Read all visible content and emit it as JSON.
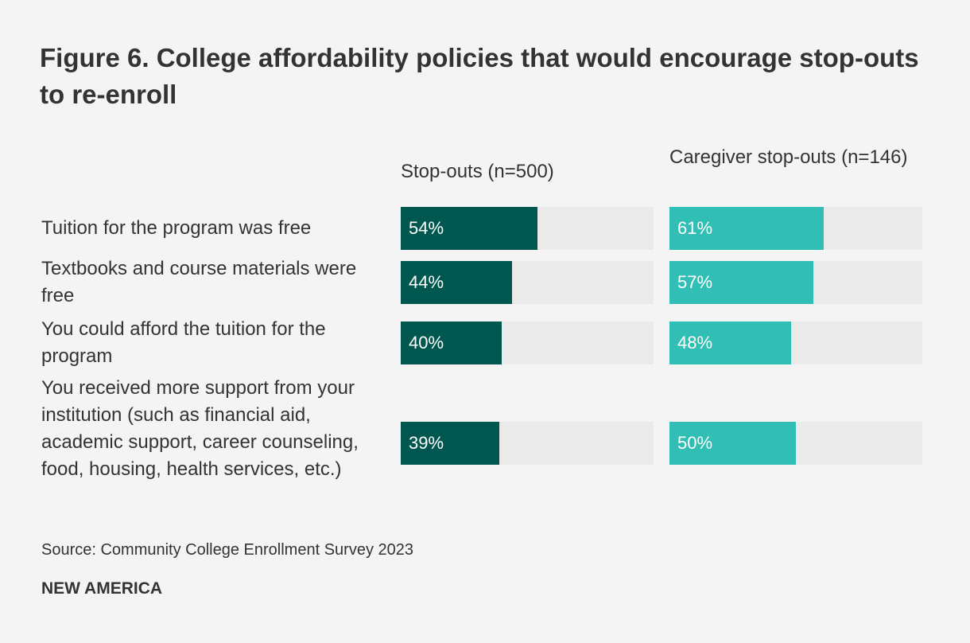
{
  "chart_data": {
    "type": "bar",
    "title": "Figure 6. College affordability policies that would encourage stop-outs to re-enroll",
    "categories": [
      "Tuition for the program was free",
      "Textbooks and course materials were free",
      "You could afford the tuition for the program",
      "You received more support from your institution (such as financial aid, academic support, career counseling, food, housing, health services, etc.)"
    ],
    "series": [
      {
        "name": "Stop-outs (n=500)",
        "color": "#00574f",
        "values": [
          54,
          44,
          40,
          39
        ],
        "labels": [
          "54%",
          "44%",
          "40%",
          "39%"
        ]
      },
      {
        "name": "Caregiver stop-outs (n=146)",
        "color": "#31beb4",
        "values": [
          61,
          57,
          48,
          50
        ],
        "labels": [
          "61%",
          "57%",
          "48%",
          "50%"
        ]
      }
    ],
    "xlim": [
      0,
      100
    ],
    "unit": "%",
    "track_color": "#eaeaea",
    "source": "Source: Community College Enrollment Survey 2023",
    "brand": "NEW AMERICA"
  }
}
